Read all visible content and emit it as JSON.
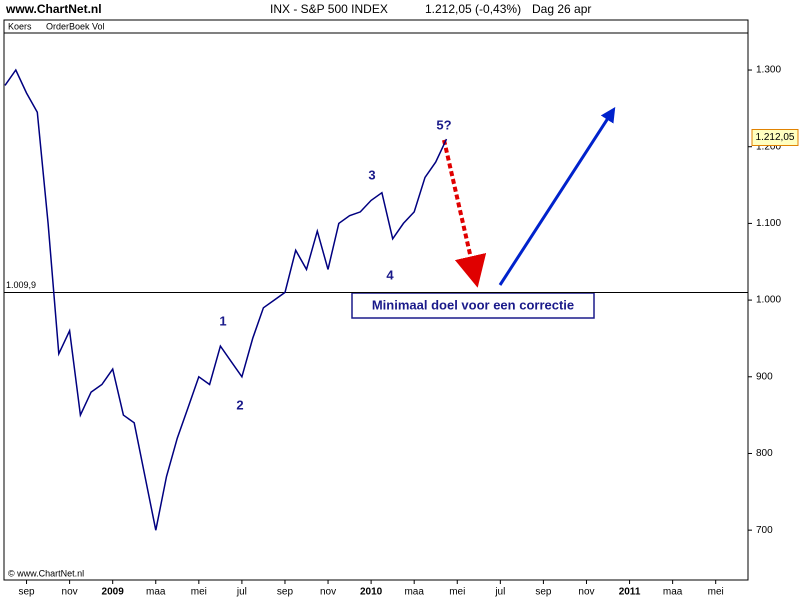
{
  "chart_data": {
    "type": "line",
    "site": "www.ChartNet.nl",
    "title": "INX - S&P 500 INDEX",
    "last_label": "1.212,05 (-0,43%)",
    "date_label": "Dag  26 apr",
    "panel_labels": [
      "Koers",
      "OrderBoek Vol"
    ],
    "footer": "© www.ChartNet.nl",
    "categories": [
      null,
      null,
      "sep",
      null,
      null,
      null,
      "nov",
      null,
      null,
      null,
      "2009",
      null,
      null,
      null,
      "maa",
      null,
      null,
      null,
      "mei",
      null,
      null,
      null,
      "jul",
      null,
      null,
      null,
      "sep",
      null,
      null,
      null,
      "nov",
      null,
      null,
      null,
      "2010",
      null,
      null,
      null,
      "maa",
      null,
      null,
      null,
      "mei",
      null,
      null,
      null,
      "jul",
      null,
      null,
      null,
      "sep",
      null,
      null,
      null,
      "nov",
      null,
      null,
      null,
      "2011",
      null,
      null,
      null,
      "maa",
      null,
      null,
      null,
      "mei",
      null,
      null,
      null
    ],
    "series": [
      {
        "name": "INX",
        "color": "#000080",
        "values": [
          1280,
          1300,
          1270,
          1245,
          1100,
          930,
          960,
          850,
          880,
          890,
          910,
          850,
          840,
          770,
          700,
          770,
          820,
          860,
          900,
          890,
          940,
          920,
          900,
          950,
          990,
          1000,
          1010,
          1065,
          1040,
          1090,
          1040,
          1100,
          1110,
          1115,
          1130,
          1140,
          1080,
          1100,
          1115,
          1160,
          1180,
          1210,
          null,
          null,
          null,
          null,
          null,
          null,
          null,
          null,
          null,
          null,
          null,
          null,
          null,
          null,
          null,
          null,
          null,
          null,
          null,
          null,
          null,
          null,
          null,
          null,
          null,
          null,
          null,
          null
        ]
      }
    ],
    "ylim": [
      635,
      1347
    ],
    "yticks": [
      {
        "value": 700,
        "label": "700"
      },
      {
        "value": 800,
        "label": "800"
      },
      {
        "value": 900,
        "label": "900"
      },
      {
        "value": 1000,
        "label": "1.000"
      },
      {
        "value": 1100,
        "label": "1.100"
      },
      {
        "value": 1200,
        "label": "1.200"
      },
      {
        "value": 1300,
        "label": "1.300"
      }
    ],
    "hline": {
      "value": 1009.9,
      "label": "1.009,9"
    },
    "last_value": {
      "value": 1212.05,
      "label": "1.212,05"
    },
    "annotations": [
      "1",
      "2",
      "3",
      "4",
      "5?",
      "Minimaal doel voor een correctie"
    ],
    "grid": false
  }
}
